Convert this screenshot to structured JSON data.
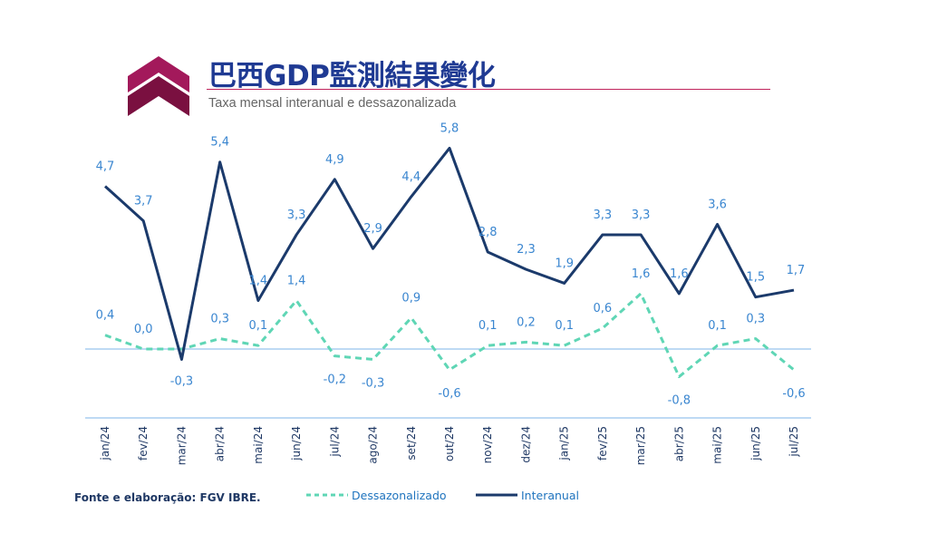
{
  "header": {
    "title": "巴西GDP監測結果變化",
    "subtitle": "Taxa mensal interanual e dessazonalizada"
  },
  "footer": {
    "source": "Fonte e elaboração: FGV IBRE."
  },
  "legend": {
    "seasonal": "Dessazonalizado",
    "interannual": "Interanual"
  },
  "colors": {
    "interannual": "#1b3a6b",
    "seasonal": "#5fd6b5",
    "label_blue": "#3a86d0",
    "label_dark": "#1f3864",
    "zero_line": "#a9cdf0",
    "logo_dark": "#7a1040",
    "logo_light": "#a3195b"
  },
  "chart_data": {
    "type": "line",
    "title": "巴西GDP監測結果變化",
    "subtitle": "Taxa mensal interanual e dessazonalizada",
    "xlabel": "",
    "ylabel": "",
    "ylim": [
      -1.5,
      6.5
    ],
    "grid": false,
    "legend_position": "bottom",
    "categories": [
      "jan/24",
      "fev/24",
      "mar/24",
      "abr/24",
      "mai/24",
      "jun/24",
      "jul/24",
      "ago/24",
      "set/24",
      "out/24",
      "nov/24",
      "dez/24",
      "jan/25",
      "fev/25",
      "mar/25",
      "abr/25",
      "mai/25",
      "jun/25",
      "jul/25"
    ],
    "series": [
      {
        "name": "Interanual",
        "style": "solid",
        "values": [
          4.7,
          3.7,
          -0.3,
          5.4,
          1.4,
          3.3,
          4.9,
          2.9,
          4.4,
          5.8,
          2.8,
          2.3,
          1.9,
          3.3,
          3.3,
          1.6,
          3.6,
          1.5,
          1.7
        ],
        "labels": [
          "4,7",
          "3,7",
          "-0,3",
          "5,4",
          "1,4",
          "3,3",
          "4,9",
          "2,9",
          "4,4",
          "5,8",
          "2,8",
          "2,3",
          "1,9",
          "3,3",
          "3,3",
          "1,6",
          "3,6",
          "1,5",
          "1,7"
        ]
      },
      {
        "name": "Dessazonalizado",
        "style": "dashed",
        "values": [
          0.4,
          0.0,
          0.0,
          0.3,
          0.1,
          1.4,
          -0.2,
          -0.3,
          0.9,
          -0.6,
          0.1,
          0.2,
          0.1,
          0.6,
          1.6,
          -0.8,
          0.1,
          0.3,
          -0.6
        ],
        "labels": [
          "0,4",
          "0,0",
          "",
          "0,3",
          "0,1",
          "1,4",
          "-0,2",
          "-0,3",
          "0,9",
          "-0,6",
          "0,1",
          "0,2",
          "0,1",
          "0,6",
          "1,6",
          "-0,8",
          "0,1",
          "0,3",
          "-0,6"
        ]
      }
    ]
  }
}
